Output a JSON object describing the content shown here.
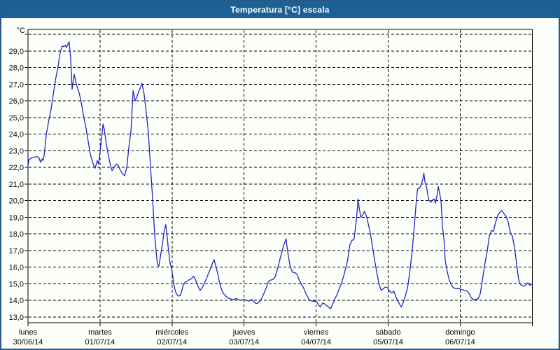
{
  "window": {
    "title": "Temperatura [°C] escala"
  },
  "colors": {
    "titlebar_bg": "#1d6094",
    "window_border": "#265a87",
    "background": "#fdfffa",
    "line": "#2323c8",
    "grid": "#000000",
    "text": "#0a0a0a"
  },
  "chart_data": {
    "type": "line",
    "title": "Temperatura [°C] escala",
    "ylabel": "°C",
    "xlabel": "",
    "ylim": [
      13,
      30
    ],
    "x_span_days": 7,
    "grid": true,
    "legend": "none",
    "y_ticks": [
      {
        "value": 30,
        "label": ""
      },
      {
        "value": 29,
        "label": "29,0"
      },
      {
        "value": 28,
        "label": "28,0"
      },
      {
        "value": 27,
        "label": "27,0"
      },
      {
        "value": 26,
        "label": "26,0"
      },
      {
        "value": 25,
        "label": "25,0"
      },
      {
        "value": 24,
        "label": "24,0"
      },
      {
        "value": 23,
        "label": "23,0"
      },
      {
        "value": 22,
        "label": "22,0"
      },
      {
        "value": 21,
        "label": "21,0"
      },
      {
        "value": 20,
        "label": "20,0"
      },
      {
        "value": 19,
        "label": "19,0"
      },
      {
        "value": 18,
        "label": "18,0"
      },
      {
        "value": 17,
        "label": "17,0"
      },
      {
        "value": 16,
        "label": "16,0"
      },
      {
        "value": 15,
        "label": "15,0"
      },
      {
        "value": 14,
        "label": "14,0"
      },
      {
        "value": 13,
        "label": "13,0"
      }
    ],
    "x_days": [
      {
        "name": "lunes",
        "date": "30/06/14"
      },
      {
        "name": "martes",
        "date": "01/07/14"
      },
      {
        "name": "miércoles",
        "date": "02/07/14"
      },
      {
        "name": "jueves",
        "date": "03/07/14"
      },
      {
        "name": "viernes",
        "date": "04/07/14"
      },
      {
        "name": "sábado",
        "date": "05/07/14"
      },
      {
        "name": "domingo",
        "date": "06/07/14"
      }
    ],
    "x_unit": "hours since lunes 30/06/14 00:00",
    "series": [
      {
        "name": "Temperatura [°C]",
        "points": [
          [
            0,
            22.05
          ],
          [
            0.3,
            22.45
          ],
          [
            1,
            22.55
          ],
          [
            2,
            22.6
          ],
          [
            3,
            22.65
          ],
          [
            3.7,
            22.55
          ],
          [
            4.2,
            22.3
          ],
          [
            4.7,
            22.5
          ],
          [
            5,
            22.4
          ],
          [
            5.4,
            22.75
          ],
          [
            6.1,
            24.0
          ],
          [
            6.8,
            24.7
          ],
          [
            7.7,
            25.5
          ],
          [
            8.4,
            26.35
          ],
          [
            9.1,
            27.2
          ],
          [
            10,
            28.05
          ],
          [
            10.7,
            28.9
          ],
          [
            11.4,
            29.3
          ],
          [
            11.9,
            29.25
          ],
          [
            12.4,
            29.35
          ],
          [
            12.8,
            29.2
          ],
          [
            13.3,
            29.4
          ],
          [
            13.7,
            29.55
          ],
          [
            14.2,
            28.6
          ],
          [
            14.7,
            26.7
          ],
          [
            15.4,
            27.6
          ],
          [
            16.1,
            27.0
          ],
          [
            17,
            26.5
          ],
          [
            17.7,
            25.95
          ],
          [
            18.4,
            25.2
          ],
          [
            19.3,
            24.4
          ],
          [
            20,
            23.6
          ],
          [
            20.7,
            22.85
          ],
          [
            21.2,
            22.5
          ],
          [
            21.9,
            22.1
          ],
          [
            22.4,
            21.95
          ],
          [
            23.1,
            22.4
          ],
          [
            23.5,
            22.2
          ],
          [
            24,
            22.9
          ],
          [
            24.7,
            24.1
          ],
          [
            25,
            24.6
          ],
          [
            25.4,
            24.3
          ],
          [
            26.1,
            23.4
          ],
          [
            26.8,
            22.7
          ],
          [
            27.5,
            22.1
          ],
          [
            28,
            21.8
          ],
          [
            28.7,
            22.0
          ],
          [
            29.4,
            22.2
          ],
          [
            30.1,
            22.1
          ],
          [
            30.8,
            21.8
          ],
          [
            31.5,
            21.6
          ],
          [
            32.2,
            21.5
          ],
          [
            32.9,
            22.0
          ],
          [
            33.6,
            23.2
          ],
          [
            34.3,
            24.2
          ],
          [
            34.7,
            25.5
          ],
          [
            35,
            26.6
          ],
          [
            35.4,
            26.3
          ],
          [
            35.7,
            26.0
          ],
          [
            36.4,
            26.3
          ],
          [
            37,
            26.6
          ],
          [
            37.5,
            26.8
          ],
          [
            38,
            27.05
          ],
          [
            38.7,
            26.4
          ],
          [
            39.4,
            25.3
          ],
          [
            40.1,
            24.1
          ],
          [
            40.8,
            22.1
          ],
          [
            41.5,
            20.2
          ],
          [
            42.2,
            18.0
          ],
          [
            42.7,
            16.9
          ],
          [
            43.1,
            16.2
          ],
          [
            43.6,
            16.05
          ],
          [
            44,
            16.5
          ],
          [
            44.7,
            17.3
          ],
          [
            45.4,
            18.2
          ],
          [
            45.9,
            18.55
          ],
          [
            46.4,
            17.8
          ],
          [
            46.8,
            17.0
          ],
          [
            47.3,
            16.3
          ],
          [
            48,
            15.75
          ],
          [
            48.5,
            15.1
          ],
          [
            48.9,
            14.7
          ],
          [
            49.4,
            14.4
          ],
          [
            50.1,
            14.25
          ],
          [
            50.8,
            14.3
          ],
          [
            51.2,
            14.55
          ],
          [
            51.7,
            14.9
          ],
          [
            52.4,
            15.1
          ],
          [
            53.1,
            15.15
          ],
          [
            53.8,
            15.25
          ],
          [
            54.5,
            15.3
          ],
          [
            55.2,
            15.45
          ],
          [
            55.9,
            15.2
          ],
          [
            56.6,
            14.85
          ],
          [
            57.3,
            14.6
          ],
          [
            58,
            14.75
          ],
          [
            58.7,
            15.0
          ],
          [
            59.4,
            15.3
          ],
          [
            60.1,
            15.6
          ],
          [
            60.8,
            15.9
          ],
          [
            61.5,
            16.25
          ],
          [
            62,
            16.45
          ],
          [
            62.4,
            16.2
          ],
          [
            63.1,
            15.7
          ],
          [
            63.8,
            15.1
          ],
          [
            64.5,
            14.65
          ],
          [
            65.2,
            14.4
          ],
          [
            66.2,
            14.2
          ],
          [
            67.1,
            14.1
          ],
          [
            68.3,
            14.05
          ],
          [
            69.4,
            14.1
          ],
          [
            70.6,
            14.0
          ],
          [
            71.8,
            14.05
          ],
          [
            72.7,
            14.0
          ],
          [
            73.6,
            13.95
          ],
          [
            74.6,
            14.05
          ],
          [
            75.3,
            13.9
          ],
          [
            76,
            13.8
          ],
          [
            76.7,
            13.85
          ],
          [
            77.4,
            14.0
          ],
          [
            78,
            14.15
          ],
          [
            78.8,
            14.5
          ],
          [
            79.5,
            14.8
          ],
          [
            79.9,
            15.05
          ],
          [
            80.6,
            15.2
          ],
          [
            81.6,
            15.25
          ],
          [
            82.3,
            15.4
          ],
          [
            83,
            15.8
          ],
          [
            83.7,
            16.3
          ],
          [
            84.4,
            16.8
          ],
          [
            85.1,
            17.25
          ],
          [
            85.8,
            17.6
          ],
          [
            86,
            17.7
          ],
          [
            86.4,
            17.1
          ],
          [
            86.9,
            16.5
          ],
          [
            87.4,
            16.0
          ],
          [
            88.1,
            15.7
          ],
          [
            89,
            15.65
          ],
          [
            89.7,
            15.55
          ],
          [
            90.4,
            15.2
          ],
          [
            91.1,
            14.95
          ],
          [
            91.8,
            14.75
          ],
          [
            92.5,
            14.45
          ],
          [
            93.2,
            14.2
          ],
          [
            93.9,
            14.0
          ],
          [
            94.6,
            13.95
          ],
          [
            95.5,
            13.95
          ],
          [
            96.2,
            13.9
          ],
          [
            96.9,
            13.7
          ],
          [
            97.4,
            13.6
          ],
          [
            97.8,
            13.75
          ],
          [
            98.3,
            13.85
          ],
          [
            99,
            13.75
          ],
          [
            99.7,
            13.65
          ],
          [
            100.4,
            13.55
          ],
          [
            100.9,
            13.5
          ],
          [
            101.6,
            13.8
          ],
          [
            102.3,
            14.1
          ],
          [
            103,
            14.35
          ],
          [
            103.7,
            14.7
          ],
          [
            104.4,
            15.0
          ],
          [
            105.1,
            15.4
          ],
          [
            105.8,
            15.9
          ],
          [
            106.5,
            16.4
          ],
          [
            107.2,
            17.3
          ],
          [
            107.9,
            17.6
          ],
          [
            108.6,
            17.65
          ],
          [
            109,
            18.2
          ],
          [
            109.5,
            19.0
          ],
          [
            110,
            20.1
          ],
          [
            110.4,
            19.5
          ],
          [
            110.9,
            19.0
          ],
          [
            111.4,
            19.1
          ],
          [
            112.1,
            19.35
          ],
          [
            112.8,
            19.05
          ],
          [
            113.5,
            18.5
          ],
          [
            114.2,
            17.9
          ],
          [
            114.9,
            17.1
          ],
          [
            115.6,
            16.3
          ],
          [
            116.3,
            15.6
          ],
          [
            117,
            14.95
          ],
          [
            117.7,
            14.6
          ],
          [
            118.4,
            14.7
          ],
          [
            119.1,
            14.8
          ],
          [
            119.8,
            14.75
          ],
          [
            120.5,
            14.55
          ],
          [
            121.2,
            14.45
          ],
          [
            121.9,
            14.55
          ],
          [
            122.6,
            14.2
          ],
          [
            123.3,
            13.95
          ],
          [
            124,
            13.7
          ],
          [
            124.4,
            13.6
          ],
          [
            125.1,
            13.9
          ],
          [
            125.8,
            14.3
          ],
          [
            126.5,
            14.8
          ],
          [
            127.2,
            15.7
          ],
          [
            127.9,
            16.8
          ],
          [
            128.6,
            18.2
          ],
          [
            129.3,
            19.8
          ],
          [
            129.8,
            20.7
          ],
          [
            130.5,
            20.75
          ],
          [
            131.2,
            21.05
          ],
          [
            131.6,
            21.3
          ],
          [
            131.9,
            21.65
          ],
          [
            132.3,
            21.1
          ],
          [
            132.8,
            20.8
          ],
          [
            133.5,
            20.05
          ],
          [
            134.2,
            19.9
          ],
          [
            134.9,
            20.05
          ],
          [
            135.3,
            20.1
          ],
          [
            135.8,
            19.85
          ],
          [
            136.5,
            20.5
          ],
          [
            136.7,
            20.85
          ],
          [
            137.2,
            20.4
          ],
          [
            137.6,
            20.0
          ],
          [
            138.1,
            18.4
          ],
          [
            138.6,
            17.7
          ],
          [
            139,
            16.4
          ],
          [
            139.7,
            15.7
          ],
          [
            140.4,
            15.2
          ],
          [
            141.1,
            14.9
          ],
          [
            141.8,
            14.75
          ],
          [
            142.7,
            14.7
          ],
          [
            143.6,
            14.7
          ],
          [
            144.5,
            14.65
          ],
          [
            145.4,
            14.6
          ],
          [
            146.3,
            14.55
          ],
          [
            147,
            14.4
          ],
          [
            147.7,
            14.15
          ],
          [
            148.4,
            14.05
          ],
          [
            149.3,
            14.05
          ],
          [
            150,
            14.1
          ],
          [
            150.7,
            14.4
          ],
          [
            151.4,
            15.2
          ],
          [
            152.1,
            16.05
          ],
          [
            153,
            16.95
          ],
          [
            153.7,
            17.85
          ],
          [
            154.4,
            18.2
          ],
          [
            155.1,
            18.15
          ],
          [
            155.8,
            18.7
          ],
          [
            156.5,
            19.1
          ],
          [
            157.2,
            19.3
          ],
          [
            157.9,
            19.4
          ],
          [
            158.6,
            19.2
          ],
          [
            159.3,
            19.05
          ],
          [
            160,
            18.7
          ],
          [
            160.7,
            18.1
          ],
          [
            161.4,
            17.85
          ],
          [
            161.9,
            17.4
          ],
          [
            162.3,
            16.9
          ],
          [
            162.8,
            16.2
          ],
          [
            163.3,
            15.5
          ],
          [
            163.7,
            15.05
          ],
          [
            164.4,
            14.9
          ],
          [
            165.1,
            14.85
          ],
          [
            165.8,
            14.9
          ],
          [
            166.5,
            15.05
          ],
          [
            167.2,
            14.9
          ],
          [
            167.8,
            14.95
          ]
        ]
      }
    ]
  }
}
